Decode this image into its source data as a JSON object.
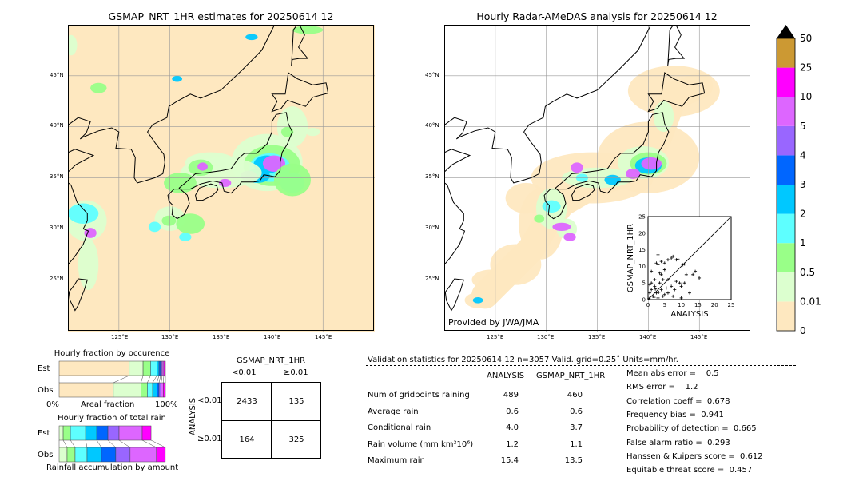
{
  "left_map": {
    "title": "GSMAP_NRT_1HR estimates for 20250614 12"
  },
  "right_map": {
    "title": "Hourly Radar-AMeDAS analysis for 20250614 12",
    "credit": "Provided by JWA/JMA"
  },
  "lon_ticks": [
    "125°E",
    "130°E",
    "135°E",
    "140°E",
    "145°E"
  ],
  "lat_ticks": [
    "45°N",
    "40°N",
    "35°N",
    "30°N",
    "25°N"
  ],
  "colorbar": {
    "labels": [
      "0",
      "0.01",
      "0.5",
      "1",
      "2",
      "3",
      "4",
      "5",
      "10",
      "25",
      "50"
    ],
    "colors": [
      "#fee8c0",
      "#dcffcf",
      "#99ff88",
      "#5effff",
      "#00c8ff",
      "#0066ff",
      "#9966ff",
      "#dd66ff",
      "#ff00ff",
      "#cc9933"
    ],
    "extend": "max"
  },
  "occurrence": {
    "title": "Hourly fraction by occurence",
    "rows": [
      "Est",
      "Obs"
    ],
    "xlabel": "Areal fraction",
    "x_min": "0%",
    "x_max": "100%",
    "est": [
      66,
      13,
      7,
      6,
      2,
      1.5,
      1.5,
      1.5,
      1.5
    ],
    "obs": [
      51,
      26,
      6,
      5,
      4,
      2,
      2,
      2,
      2
    ]
  },
  "total_rain": {
    "title": "Hourly fraction of total rain",
    "rows": [
      "Est",
      "Obs"
    ],
    "xlabel": "Rainfall accumulation by amount",
    "est": [
      3.8,
      6.8,
      14.3,
      10.5,
      10.5,
      10.5,
      21.8,
      8.3
    ],
    "obs": [
      7.5,
      7.5,
      11.3,
      13.5,
      13.5,
      13.5,
      24.8,
      8.3
    ]
  },
  "contingency": {
    "title": "GSMAP_NRT_1HR",
    "col_labels": [
      "<0.01",
      "≥0.01"
    ],
    "row_axis": "ANALYSIS",
    "row_labels": [
      "<0.01",
      "≥0.01"
    ],
    "cells": [
      [
        "2433",
        "135"
      ],
      [
        "164",
        "325"
      ]
    ]
  },
  "stats": {
    "header": "Validation statistics for 20250614 12  n=3057 Valid. grid=0.25˚ Units=mm/hr.",
    "columns": [
      "ANALYSIS",
      "GSMAP_NRT_1HR"
    ],
    "rows": [
      {
        "label": "Num of gridpoints raining",
        "a": "489",
        "g": "460"
      },
      {
        "label": "Average rain",
        "a": "0.6",
        "g": "0.6"
      },
      {
        "label": "Conditional rain",
        "a": "4.0",
        "g": "3.7"
      },
      {
        "label": "Rain volume (mm km²10⁶)",
        "a": "1.2",
        "g": "1.1"
      },
      {
        "label": "Maximum rain",
        "a": "15.4",
        "g": "13.5"
      }
    ],
    "scores": [
      "Mean abs error =    0.5",
      "RMS error =    1.2",
      "Correlation coeff =  0.678",
      "Frequency bias =  0.941",
      "Probability of detection =  0.665",
      "False alarm ratio =  0.293",
      "Hanssen & Kuipers score =  0.612",
      "Equitable threat score =  0.457"
    ]
  },
  "chart_data": {
    "type": "scatter",
    "xlabel": "ANALYSIS",
    "ylabel": "GSMAP_NRT_1HR",
    "xlim": [
      0,
      25
    ],
    "ylim": [
      0,
      25
    ],
    "ticks": [
      "0",
      "5",
      "10",
      "15",
      "20",
      "25"
    ],
    "points": [
      [
        3,
        13.5
      ],
      [
        2.5,
        11
      ],
      [
        3,
        10.5
      ],
      [
        4,
        11.5
      ],
      [
        5,
        11
      ],
      [
        6,
        12
      ],
      [
        7,
        12.5
      ],
      [
        7.5,
        13
      ],
      [
        8.5,
        12
      ],
      [
        9,
        12.2
      ],
      [
        1,
        8.5
      ],
      [
        3.5,
        8
      ],
      [
        4,
        7.5
      ],
      [
        5,
        9
      ],
      [
        10.5,
        10.5
      ],
      [
        11,
        10.7
      ],
      [
        14.2,
        8.5
      ],
      [
        15.4,
        6.5
      ],
      [
        11.5,
        7.5
      ],
      [
        13.5,
        7.5
      ],
      [
        9.5,
        5
      ],
      [
        10,
        4
      ],
      [
        11,
        5
      ],
      [
        12.5,
        2
      ],
      [
        10,
        0.5
      ],
      [
        8,
        3
      ],
      [
        7,
        4
      ],
      [
        6,
        6
      ],
      [
        4.5,
        6
      ],
      [
        3.5,
        5
      ],
      [
        2,
        4
      ],
      [
        1,
        3
      ],
      [
        0.5,
        2
      ],
      [
        1.5,
        1
      ],
      [
        2.5,
        2
      ],
      [
        3,
        0.5
      ],
      [
        4,
        3
      ],
      [
        5,
        1.5
      ],
      [
        0.3,
        0.3
      ],
      [
        1,
        5
      ],
      [
        2,
        6
      ],
      [
        6,
        2
      ],
      [
        7.5,
        1
      ],
      [
        8.5,
        5.5
      ],
      [
        5.5,
        3.5
      ],
      [
        4.5,
        1
      ],
      [
        0.5,
        4.5
      ],
      [
        2.2,
        3.2
      ],
      [
        3.2,
        2.2
      ],
      [
        1.8,
        0.7
      ]
    ]
  }
}
